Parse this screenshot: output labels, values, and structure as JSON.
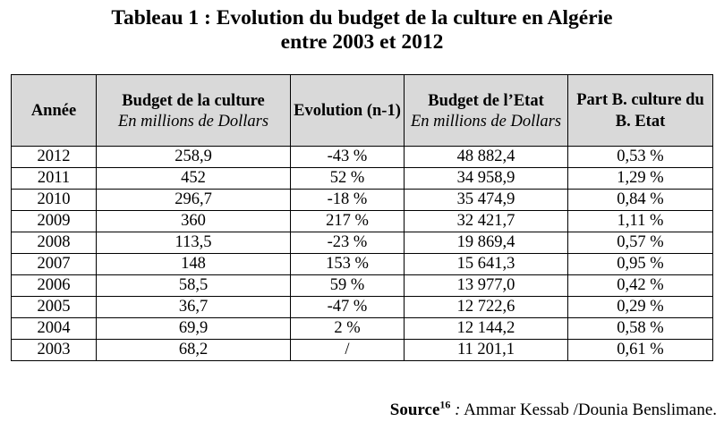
{
  "title": {
    "line1": "Tableau 1 : Evolution du budget de la culture en Algérie",
    "line2": "entre 2003 et 2012"
  },
  "table": {
    "headers": [
      {
        "main": "Année",
        "sub": ""
      },
      {
        "main": "Budget de la culture",
        "sub": "En millions de Dollars"
      },
      {
        "main": "Evolution (n-1)",
        "sub": ""
      },
      {
        "main": "Budget de l’Etat",
        "sub": "En millions de Dollars"
      },
      {
        "main": "Part B. culture du B. Etat",
        "sub": ""
      }
    ],
    "rows": [
      [
        "2012",
        "258,9",
        "-43 %",
        "48 882,4",
        "0,53 %"
      ],
      [
        "2011",
        "452",
        "52  %",
        "34 958,9",
        "1,29 %"
      ],
      [
        "2010",
        "296,7",
        "-18 %",
        "35 474,9",
        "0,84 %"
      ],
      [
        "2009",
        "360",
        "217 %",
        "32 421,7",
        "1,11 %"
      ],
      [
        "2008",
        "113,5",
        "-23 %",
        "19 869,4",
        "0,57 %"
      ],
      [
        "2007",
        "148",
        "153 %",
        "15 641,3",
        "0,95 %"
      ],
      [
        "2006",
        "58,5",
        "59 %",
        "13 977,0",
        "0,42 %"
      ],
      [
        "2005",
        "36,7",
        "-47 %",
        "12 722,6",
        "0,29 %"
      ],
      [
        "2004",
        "69,9",
        "2 %",
        "12 144,2",
        "0,58 %"
      ],
      [
        "2003",
        "68,2",
        "/",
        "11 201,1",
        "0,61 %"
      ]
    ]
  },
  "source": {
    "label": "Source",
    "note": "16",
    "separator": " :",
    "text": " Ammar Kessab /Dounia Benslimane."
  }
}
